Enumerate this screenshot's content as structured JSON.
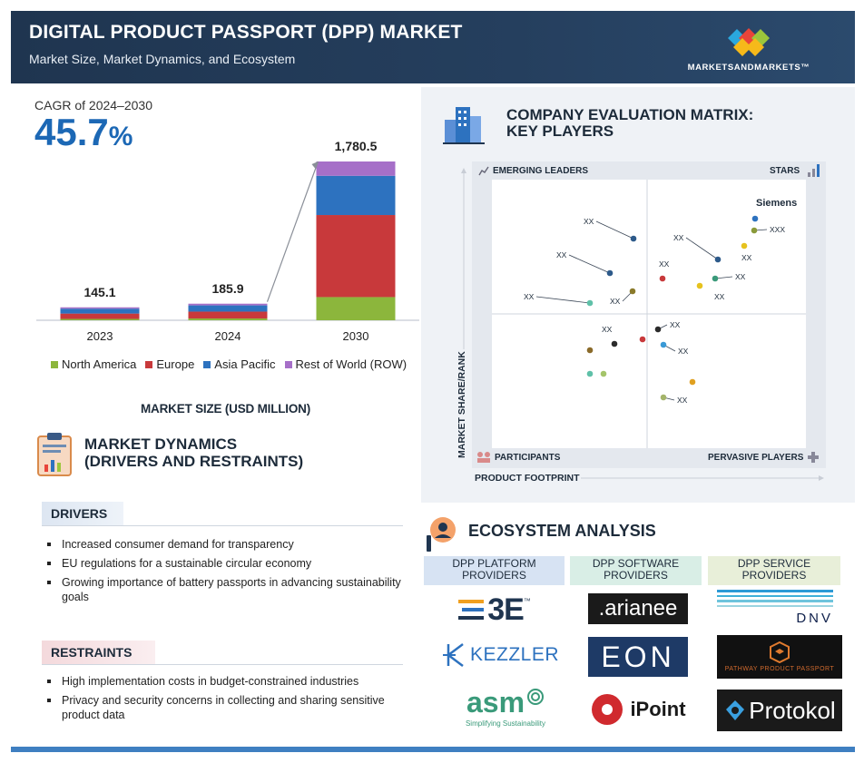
{
  "header": {
    "title": "DIGITAL PRODUCT PASSPORT (DPP) MARKET",
    "subtitle": "Market Size, Market Dynamics, and Ecosystem",
    "brand": "MARKETSANDMARKETS™"
  },
  "cagr": {
    "label": "CAGR of 2024–2030",
    "value": "45.7",
    "unit": "%"
  },
  "chart_data": {
    "type": "bar",
    "stacked": true,
    "title": "MARKET SIZE (USD MILLION)",
    "categories": [
      "2023",
      "2024",
      "2030"
    ],
    "totals": [
      "145.1",
      "185.9",
      "1,780.5"
    ],
    "series": [
      {
        "name": "North America",
        "color": "#8cb63c",
        "values": [
          15,
          20,
          260
        ]
      },
      {
        "name": "Europe",
        "color": "#c8393b",
        "values": [
          60,
          77,
          920
        ]
      },
      {
        "name": "Asia Pacific",
        "color": "#2d72bf",
        "values": [
          55,
          70,
          440
        ]
      },
      {
        "name": "Rest of World (ROW)",
        "color": "#a66fc8",
        "values": [
          15.1,
          18.9,
          160.5
        ]
      }
    ],
    "ylim": [
      0,
      1780.5
    ],
    "grid": false,
    "legend": "bottom"
  },
  "market_dynamics": {
    "title_line1": "MARKET DYNAMICS",
    "title_line2": "(DRIVERS AND RESTRAINTS)",
    "drivers_label": "DRIVERS",
    "drivers": [
      "Increased consumer demand for transparency",
      "EU regulations for a sustainable circular economy",
      "Growing importance of battery passports in advancing sustainability goals"
    ],
    "restraints_label": "RESTRAINTS",
    "restraints": [
      "High implementation costs in budget-constrained industries",
      "Privacy and security concerns in collecting and sharing sensitive product data"
    ]
  },
  "matrix": {
    "title_line1": "COMPANY EVALUATION MATRIX:",
    "title_line2": "KEY PLAYERS",
    "quadrants": {
      "top_left": "EMERGING LEADERS",
      "top_right": "STARS",
      "bottom_left": "PARTICIPANTS",
      "bottom_right": "PERVASIVE PLAYERS"
    },
    "x_axis": "PRODUCT FOOTPRINT",
    "y_axis": "MARKET SHARE/RANK",
    "highlight": "Siemens",
    "labels": {
      "xx": "XX",
      "xxx": "XXX"
    }
  },
  "ecosystem": {
    "title": "ECOSYSTEM ANALYSIS",
    "columns": [
      {
        "line1": "DPP PLATFORM",
        "line2": "PROVIDERS",
        "vendors": [
          "3E",
          "KEZZLER",
          "asm"
        ]
      },
      {
        "line1": "DPP SOFTWARE",
        "line2": "PROVIDERS",
        "vendors": [
          ".arianee",
          "EON",
          "iPoint"
        ]
      },
      {
        "line1": "DPP SERVICE",
        "line2": "PROVIDERS",
        "vendors": [
          "DNV",
          "PATHWAY PRODUCT PASSPORT",
          "Protokol"
        ]
      }
    ],
    "asm_tagline": "Simplifying Sustainability",
    "tm": "™"
  },
  "colors": {
    "header_bg": "#1f3550",
    "accent_blue": "#1c68b5",
    "north_america": "#8cb63c",
    "europe": "#c8393b",
    "asia_pacific": "#2d72bf",
    "row": "#a66fc8"
  }
}
